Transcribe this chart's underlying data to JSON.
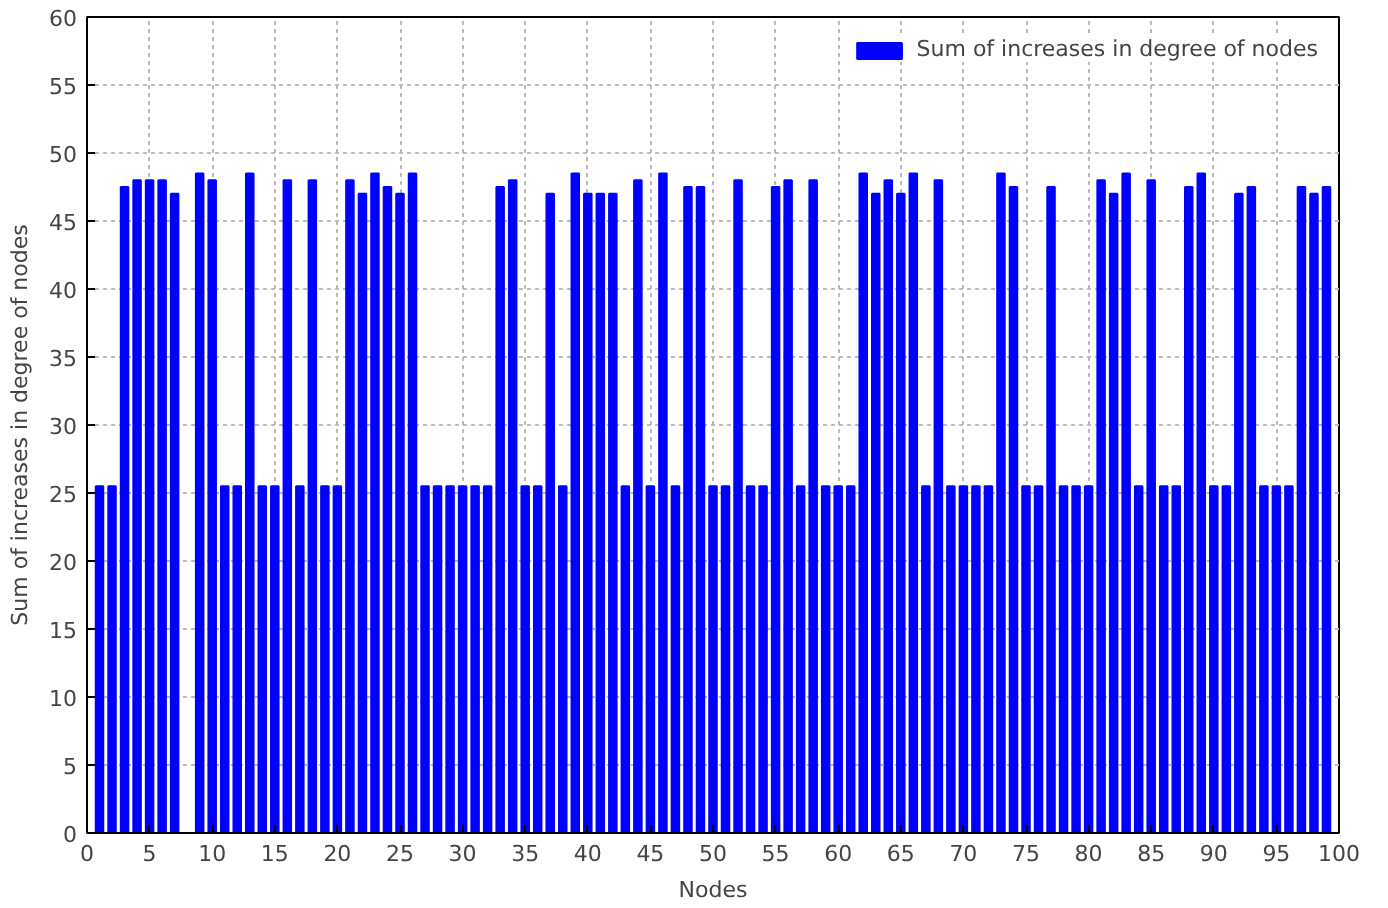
{
  "chart_data": {
    "type": "bar",
    "xlabel": "Nodes",
    "ylabel": "Sum of increases in degree of nodes",
    "x": [
      1,
      2,
      3,
      4,
      5,
      6,
      7,
      8,
      9,
      10,
      11,
      12,
      13,
      14,
      15,
      16,
      17,
      18,
      19,
      20,
      21,
      22,
      23,
      24,
      25,
      26,
      27,
      28,
      29,
      30,
      31,
      32,
      33,
      34,
      35,
      36,
      37,
      38,
      39,
      40,
      41,
      42,
      43,
      44,
      45,
      46,
      47,
      48,
      49,
      50,
      51,
      52,
      53,
      54,
      55,
      56,
      57,
      58,
      59,
      60,
      61,
      62,
      63,
      64,
      65,
      66,
      67,
      68,
      69,
      70,
      71,
      72,
      73,
      74,
      75,
      76,
      77,
      78,
      79,
      80,
      81,
      82,
      83,
      84,
      85,
      86,
      87,
      88,
      89,
      90,
      91,
      92,
      93,
      94,
      95,
      96,
      97,
      98,
      99
    ],
    "series": [
      {
        "name": "Sum of increases in degree of nodes",
        "color": "#0000ff",
        "values": [
          25.5,
          25.5,
          47.5,
          48,
          48,
          48,
          47,
          null,
          48.5,
          48,
          25.5,
          25.5,
          48.5,
          25.5,
          25.5,
          48,
          25.5,
          48,
          25.5,
          25.5,
          48,
          47,
          48.5,
          47.5,
          47,
          48.5,
          25.5,
          25.5,
          25.5,
          25.5,
          25.5,
          25.5,
          47.5,
          48,
          25.5,
          25.5,
          47,
          25.5,
          48.5,
          47,
          47,
          47,
          25.5,
          48,
          25.5,
          48.5,
          25.5,
          47.5,
          47.5,
          25.5,
          25.5,
          48,
          25.5,
          25.5,
          47.5,
          48,
          25.5,
          48,
          25.5,
          25.5,
          25.5,
          48.5,
          47,
          48,
          47,
          48.5,
          25.5,
          48,
          25.5,
          25.5,
          25.5,
          25.5,
          48.5,
          47.5,
          25.5,
          25.5,
          47.5,
          25.5,
          25.5,
          25.5,
          48,
          47,
          48.5,
          25.5,
          48,
          25.5,
          25.5,
          47.5,
          48.5,
          25.5,
          25.5,
          47,
          47.5,
          25.5,
          25.5,
          25.5,
          47.5,
          47,
          47.5
        ]
      }
    ],
    "xlim": [
      0,
      100
    ],
    "ylim": [
      0,
      60
    ],
    "xticks": [
      0,
      5,
      10,
      15,
      20,
      25,
      30,
      35,
      40,
      45,
      50,
      55,
      60,
      65,
      70,
      75,
      80,
      85,
      90,
      95,
      100
    ],
    "yticks": [
      0,
      5,
      10,
      15,
      20,
      25,
      30,
      35,
      40,
      45,
      50,
      55,
      60
    ],
    "grid": true,
    "legend": "top right"
  }
}
